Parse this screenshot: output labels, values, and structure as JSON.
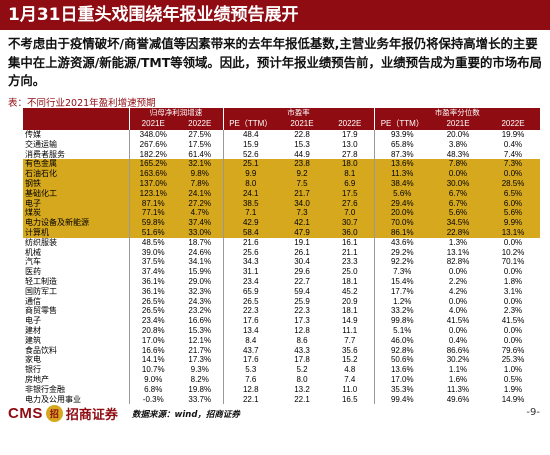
{
  "title": "1月31日重头戏围绕年报业绩预告展开",
  "paragraph": "不考虑由于疫情破坏/商誉减值等因素带来的去年年报低基数,主营业务年报仍将保持高增长的主要集中在上游资源/新能源/TMT等领域。因此，预计年报业绩预告前，业绩预告成为重要的市场布局方向。",
  "caption": "表：不同行业2021年盈利增速预期",
  "table": {
    "group_headers": [
      "归母净利润增速",
      "市盈率",
      "市盈率分位数"
    ],
    "sub_headers": [
      "2021E",
      "2022E",
      "PE（TTM）",
      "2021E",
      "2022E",
      "PE（TTM）",
      "2021E",
      "2022E"
    ],
    "rows": [
      {
        "name": "传媒",
        "v": [
          "348.0%",
          "27.5%",
          "48.4",
          "22.8",
          "17.9",
          "93.9%",
          "20.0%",
          "19.9%"
        ],
        "hl": false
      },
      {
        "name": "交通运输",
        "v": [
          "267.6%",
          "17.5%",
          "15.9",
          "15.3",
          "13.0",
          "65.8%",
          "3.8%",
          "0.4%"
        ],
        "hl": false
      },
      {
        "name": "消费者服务",
        "v": [
          "182.2%",
          "61.4%",
          "52.6",
          "44.9",
          "27.8",
          "87.3%",
          "48.3%",
          "7.4%"
        ],
        "hl": false
      },
      {
        "name": "有色金属",
        "v": [
          "165.2%",
          "32.1%",
          "25.1",
          "23.8",
          "18.0",
          "13.6%",
          "7.8%",
          "7.3%"
        ],
        "hl": true
      },
      {
        "name": "石油石化",
        "v": [
          "163.6%",
          "9.8%",
          "9.9",
          "9.2",
          "8.1",
          "11.3%",
          "0.0%",
          "0.0%"
        ],
        "hl": true
      },
      {
        "name": "钢铁",
        "v": [
          "137.0%",
          "7.8%",
          "8.0",
          "7.5",
          "6.9",
          "38.4%",
          "30.0%",
          "28.5%"
        ],
        "hl": true
      },
      {
        "name": "基础化工",
        "v": [
          "123.1%",
          "24.1%",
          "24.1",
          "21.7",
          "17.5",
          "5.6%",
          "6.7%",
          "6.5%"
        ],
        "hl": true
      },
      {
        "name": "电子",
        "v": [
          "87.1%",
          "27.2%",
          "38.5",
          "34.0",
          "27.6",
          "29.4%",
          "6.7%",
          "6.0%"
        ],
        "hl": true
      },
      {
        "name": "煤炭",
        "v": [
          "77.1%",
          "4.7%",
          "7.1",
          "7.3",
          "7.0",
          "20.0%",
          "5.6%",
          "5.6%"
        ],
        "hl": true
      },
      {
        "name": "电力设备及新能源",
        "v": [
          "59.8%",
          "37.4%",
          "42.9",
          "42.1",
          "30.7",
          "70.0%",
          "34.5%",
          "9.9%"
        ],
        "hl": true
      },
      {
        "name": "计算机",
        "v": [
          "51.6%",
          "33.0%",
          "58.4",
          "47.9",
          "36.0",
          "86.1%",
          "22.8%",
          "13.1%"
        ],
        "hl": true
      },
      {
        "name": "纺织服装",
        "v": [
          "48.5%",
          "18.7%",
          "21.6",
          "19.1",
          "16.1",
          "43.6%",
          "1.3%",
          "0.0%"
        ],
        "hl": false
      },
      {
        "name": "机械",
        "v": [
          "39.0%",
          "24.6%",
          "25.6",
          "26.1",
          "21.1",
          "29.2%",
          "13.1%",
          "10.2%"
        ],
        "hl": false
      },
      {
        "name": "汽车",
        "v": [
          "37.5%",
          "34.1%",
          "34.3",
          "30.4",
          "23.3",
          "92.2%",
          "82.8%",
          "70.1%"
        ],
        "hl": false
      },
      {
        "name": "医药",
        "v": [
          "37.4%",
          "15.9%",
          "31.1",
          "29.6",
          "25.0",
          "7.3%",
          "0.0%",
          "0.0%"
        ],
        "hl": false
      },
      {
        "name": "轻工制造",
        "v": [
          "36.1%",
          "29.0%",
          "23.4",
          "22.7",
          "18.1",
          "15.4%",
          "2.2%",
          "1.8%"
        ],
        "hl": false
      },
      {
        "name": "国防军工",
        "v": [
          "36.1%",
          "32.3%",
          "65.9",
          "59.4",
          "45.2",
          "17.7%",
          "4.2%",
          "3.1%"
        ],
        "hl": false
      },
      {
        "name": "通信",
        "v": [
          "26.5%",
          "24.3%",
          "26.5",
          "25.9",
          "20.9",
          "1.2%",
          "0.0%",
          "0.0%"
        ],
        "hl": false
      },
      {
        "name": "商贸零售",
        "v": [
          "26.5%",
          "23.2%",
          "22.3",
          "22.3",
          "18.1",
          "33.2%",
          "4.0%",
          "2.3%"
        ],
        "hl": false
      },
      {
        "name": "电子",
        "v": [
          "23.4%",
          "16.6%",
          "17.6",
          "17.3",
          "14.9",
          "99.8%",
          "41.5%",
          "41.5%"
        ],
        "hl": false
      },
      {
        "name": "建材",
        "v": [
          "20.8%",
          "15.3%",
          "13.4",
          "12.8",
          "11.1",
          "5.1%",
          "0.0%",
          "0.0%"
        ],
        "hl": false
      },
      {
        "name": "建筑",
        "v": [
          "17.0%",
          "12.1%",
          "8.4",
          "8.6",
          "7.7",
          "46.0%",
          "0.4%",
          "0.0%"
        ],
        "hl": false
      },
      {
        "name": "食品饮料",
        "v": [
          "16.6%",
          "21.7%",
          "43.7",
          "43.3",
          "35.6",
          "92.8%",
          "86.6%",
          "79.6%"
        ],
        "hl": false
      },
      {
        "name": "家电",
        "v": [
          "14.1%",
          "17.3%",
          "17.6",
          "17.8",
          "15.2",
          "50.6%",
          "30.2%",
          "25.3%"
        ],
        "hl": false
      },
      {
        "name": "银行",
        "v": [
          "10.7%",
          "9.3%",
          "5.3",
          "5.2",
          "4.8",
          "13.6%",
          "1.1%",
          "1.0%"
        ],
        "hl": false
      },
      {
        "name": "房地产",
        "v": [
          "9.0%",
          "8.2%",
          "7.6",
          "8.0",
          "7.4",
          "17.0%",
          "1.6%",
          "0.5%"
        ],
        "hl": false
      },
      {
        "name": "非银行金融",
        "v": [
          "6.8%",
          "19.8%",
          "12.8",
          "13.2",
          "11.0",
          "35.3%",
          "11.3%",
          "1.9%"
        ],
        "hl": false
      },
      {
        "name": "电力及公用事业",
        "v": [
          "-0.3%",
          "33.7%",
          "22.1",
          "22.1",
          "16.5",
          "99.4%",
          "49.6%",
          "14.9%"
        ],
        "hl": false
      }
    ]
  },
  "footer": {
    "logo_en": "CMS",
    "logo_badge": "招",
    "logo_cn": "招商证券",
    "source": "数据来源：wind，招商证券",
    "page": "-9-"
  },
  "colors": {
    "brand": "#8f0c13",
    "highlight": "#d6a81e"
  }
}
